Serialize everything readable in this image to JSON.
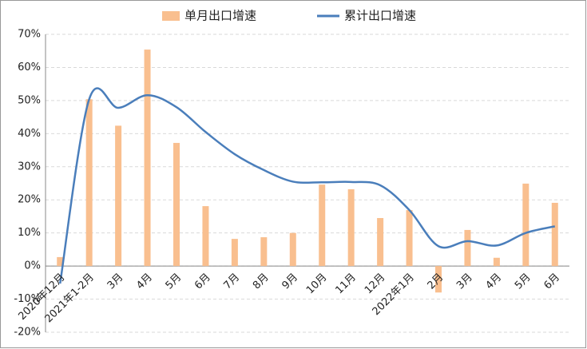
{
  "chart_data": {
    "type": "bar_line",
    "categories": [
      "2020年12月",
      "2021年1-2月",
      "3月",
      "4月",
      "5月",
      "6月",
      "7月",
      "8月",
      "9月",
      "10月",
      "11月",
      "12月",
      "2022年1月",
      "2月",
      "3月",
      "4月",
      "5月",
      "6月"
    ],
    "series": [
      {
        "name": "单月出口增速",
        "type": "bar",
        "color": "#f9bf8f",
        "values": [
          2.7,
          50.4,
          42.4,
          65.4,
          37.2,
          18.1,
          8.2,
          8.7,
          10.0,
          24.6,
          23.2,
          14.5,
          16.9,
          -8.0,
          10.9,
          2.5,
          24.9,
          19.1
        ]
      },
      {
        "name": "累计出口增速",
        "type": "line",
        "color": "#4a7ebb",
        "values": [
          -5.3,
          50.4,
          47.8,
          51.6,
          48.0,
          40.5,
          33.8,
          29.0,
          25.5,
          25.3,
          25.4,
          24.4,
          16.9,
          6.0,
          7.5,
          6.2,
          10.0,
          12.0
        ]
      }
    ],
    "ylim": [
      -20,
      70
    ],
    "yticks": [
      {
        "value": -20,
        "label": "-20%"
      },
      {
        "value": -10,
        "label": "-10%"
      },
      {
        "value": 0,
        "label": "0%"
      },
      {
        "value": 10,
        "label": "10%"
      },
      {
        "value": 20,
        "label": "20%"
      },
      {
        "value": 30,
        "label": "30%"
      },
      {
        "value": 40,
        "label": "40%"
      },
      {
        "value": 50,
        "label": "50%"
      },
      {
        "value": 60,
        "label": "60%"
      },
      {
        "value": 70,
        "label": "70%"
      }
    ],
    "grid": true,
    "legend": "top"
  }
}
